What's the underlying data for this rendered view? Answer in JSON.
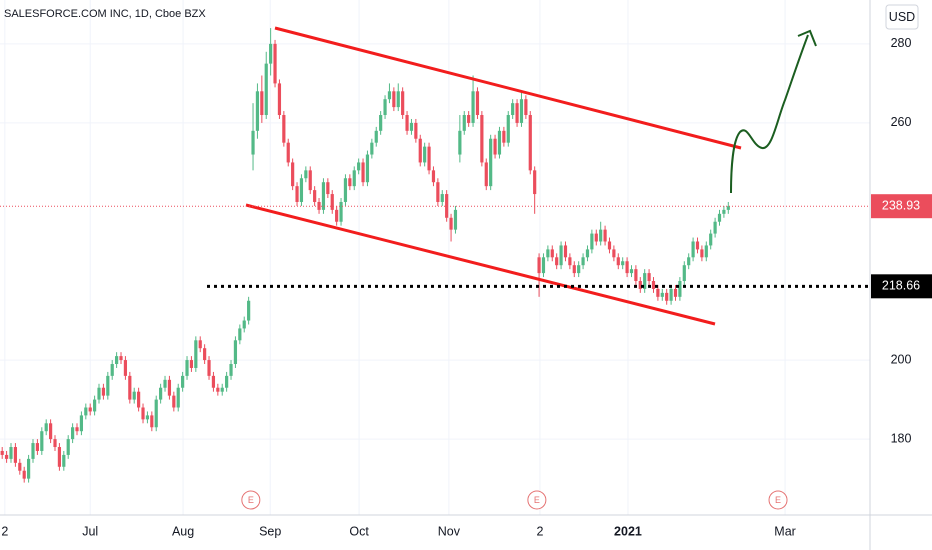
{
  "chart_data": {
    "type": "candlestick",
    "title": "SALESFORCE.COM INC, 1D, Cboe BZX",
    "currency": "USD",
    "up_color": "#53b987",
    "down_color": "#eb4d5c",
    "grid": true,
    "xlim": [
      -0.5,
      197.2
    ],
    "ylim": [
      160.8,
      291.1
    ],
    "yticks": [
      180,
      200,
      260,
      280
    ],
    "xticks": [
      {
        "value": 0.6,
        "label": "2"
      },
      {
        "value": 20,
        "label": "Jul"
      },
      {
        "value": 41.1,
        "label": "Aug"
      },
      {
        "value": 60.9,
        "label": "Sep"
      },
      {
        "value": 81.1,
        "label": "Oct"
      },
      {
        "value": 101.5,
        "label": "Nov"
      },
      {
        "value": 122.2,
        "label": "2"
      },
      {
        "value": 142.2,
        "label": "2021",
        "bold": true
      },
      {
        "value": 177.9,
        "label": "Mar"
      }
    ],
    "hline": {
      "value": 218.66
    },
    "events": [
      {
        "x": 56.5,
        "label": "E"
      },
      {
        "x": 121.5,
        "label": "E"
      },
      {
        "x": 176.3,
        "label": "E"
      }
    ],
    "open": [
      177,
      176,
      175,
      178,
      174,
      172,
      170,
      175,
      179,
      177,
      182,
      184,
      180,
      178,
      173,
      176,
      180,
      183,
      182,
      186,
      188,
      187,
      190,
      193,
      191,
      196,
      199,
      201,
      200,
      196,
      190,
      192,
      188,
      185,
      186,
      183,
      190,
      193,
      195,
      191,
      188,
      193,
      196,
      200,
      198,
      205,
      203,
      200,
      196,
      193,
      192,
      193,
      196,
      199,
      205,
      208,
      210,
      252,
      258,
      268,
      262,
      275,
      280,
      270,
      262,
      255,
      250,
      244,
      240,
      246,
      248,
      243,
      240,
      238,
      245,
      242,
      238,
      235,
      240,
      246,
      244,
      248,
      250,
      245,
      252,
      255,
      258,
      262,
      266,
      268,
      264,
      268,
      262,
      258,
      260,
      256,
      250,
      254,
      248,
      245,
      240,
      242,
      236,
      233,
      252,
      258,
      262,
      260,
      268,
      262,
      250,
      244,
      256,
      252,
      258,
      255,
      262,
      265,
      260,
      266,
      262,
      248,
      226,
      222,
      226,
      228,
      226,
      224,
      229,
      226,
      224,
      222,
      224,
      226,
      228,
      232,
      230,
      233,
      230,
      228,
      226,
      224,
      225,
      222,
      223,
      220,
      218,
      222,
      220,
      218,
      216,
      217,
      215,
      218,
      216,
      220,
      224,
      226,
      230,
      228,
      226,
      229,
      232,
      235,
      237,
      238
    ],
    "high": [
      178,
      177,
      179,
      179,
      175,
      173,
      176,
      180,
      180,
      183,
      185,
      185,
      181,
      179,
      177,
      181,
      184,
      184,
      187,
      189,
      189,
      191,
      194,
      194,
      197,
      200,
      202,
      202,
      201,
      197,
      193,
      193,
      189,
      187,
      187,
      191,
      194,
      196,
      196,
      192,
      194,
      197,
      201,
      201,
      206,
      206,
      204,
      201,
      197,
      194,
      194,
      197,
      200,
      206,
      209,
      211,
      216,
      265,
      270,
      272,
      278,
      284,
      281,
      271,
      263,
      256,
      251,
      245,
      247,
      249,
      249,
      244,
      241,
      246,
      246,
      243,
      239,
      241,
      247,
      247,
      249,
      251,
      251,
      253,
      256,
      259,
      263,
      267,
      270,
      269,
      270,
      269,
      263,
      261,
      261,
      257,
      255,
      255,
      249,
      246,
      243,
      243,
      237,
      239,
      262,
      263,
      263,
      272,
      269,
      263,
      251,
      257,
      257,
      259,
      259,
      263,
      266,
      266,
      268,
      267,
      263,
      249,
      227,
      227,
      229,
      229,
      227,
      230,
      230,
      227,
      225,
      225,
      227,
      229,
      233,
      233,
      235,
      234,
      231,
      229,
      227,
      226,
      226,
      224,
      224,
      221,
      223,
      223,
      221,
      219,
      218,
      218,
      219,
      219,
      221,
      225,
      227,
      231,
      231,
      229,
      230,
      233,
      236,
      238,
      239,
      240
    ],
    "low": [
      175,
      174,
      174,
      173,
      171,
      169,
      169,
      174,
      176,
      176,
      181,
      179,
      177,
      172,
      172,
      175,
      179,
      181,
      181,
      185,
      186,
      186,
      189,
      190,
      190,
      195,
      198,
      199,
      195,
      189,
      189,
      187,
      184,
      184,
      182,
      182,
      189,
      192,
      190,
      187,
      187,
      192,
      195,
      197,
      197,
      202,
      199,
      195,
      192,
      191,
      191,
      192,
      195,
      198,
      204,
      207,
      209,
      248,
      256,
      260,
      261,
      272,
      269,
      261,
      254,
      249,
      243,
      239,
      239,
      245,
      242,
      239,
      237,
      237,
      241,
      237,
      234,
      234,
      239,
      243,
      243,
      247,
      244,
      244,
      251,
      254,
      257,
      261,
      265,
      263,
      263,
      261,
      257,
      257,
      255,
      249,
      249,
      247,
      244,
      239,
      239,
      235,
      230,
      232,
      250,
      257,
      259,
      259,
      261,
      249,
      243,
      243,
      251,
      251,
      254,
      254,
      261,
      259,
      259,
      261,
      247,
      237,
      216,
      221,
      225,
      225,
      223,
      223,
      225,
      223,
      221,
      221,
      223,
      225,
      227,
      229,
      229,
      229,
      227,
      225,
      223,
      223,
      221,
      221,
      219,
      217,
      217,
      219,
      217,
      215,
      215,
      214,
      214,
      215,
      215,
      219,
      223,
      225,
      227,
      225,
      225,
      228,
      231,
      234,
      236,
      237
    ],
    "close": [
      176,
      175,
      178,
      174,
      172,
      170,
      175,
      179,
      177,
      182,
      184,
      180,
      178,
      173,
      176,
      180,
      183,
      182,
      186,
      188,
      187,
      190,
      193,
      191,
      196,
      199,
      201,
      200,
      196,
      190,
      192,
      188,
      185,
      186,
      183,
      190,
      193,
      195,
      191,
      188,
      193,
      196,
      200,
      198,
      205,
      203,
      200,
      196,
      193,
      192,
      193,
      196,
      199,
      205,
      208,
      210,
      215,
      258,
      268,
      262,
      275,
      280,
      270,
      262,
      255,
      250,
      244,
      240,
      246,
      248,
      243,
      240,
      238,
      245,
      242,
      238,
      235,
      240,
      246,
      244,
      248,
      250,
      245,
      252,
      255,
      258,
      262,
      266,
      268,
      264,
      268,
      262,
      258,
      260,
      256,
      250,
      254,
      248,
      245,
      240,
      242,
      236,
      233,
      238,
      258,
      262,
      260,
      268,
      262,
      250,
      244,
      256,
      252,
      258,
      255,
      262,
      265,
      260,
      266,
      262,
      248,
      242,
      222,
      226,
      228,
      226,
      224,
      229,
      226,
      224,
      222,
      224,
      226,
      228,
      232,
      230,
      233,
      230,
      228,
      226,
      224,
      225,
      222,
      223,
      220,
      218,
      222,
      220,
      218,
      216,
      217,
      215,
      218,
      216,
      220,
      224,
      226,
      230,
      228,
      226,
      229,
      232,
      235,
      237,
      238,
      238.93
    ]
  }
}
